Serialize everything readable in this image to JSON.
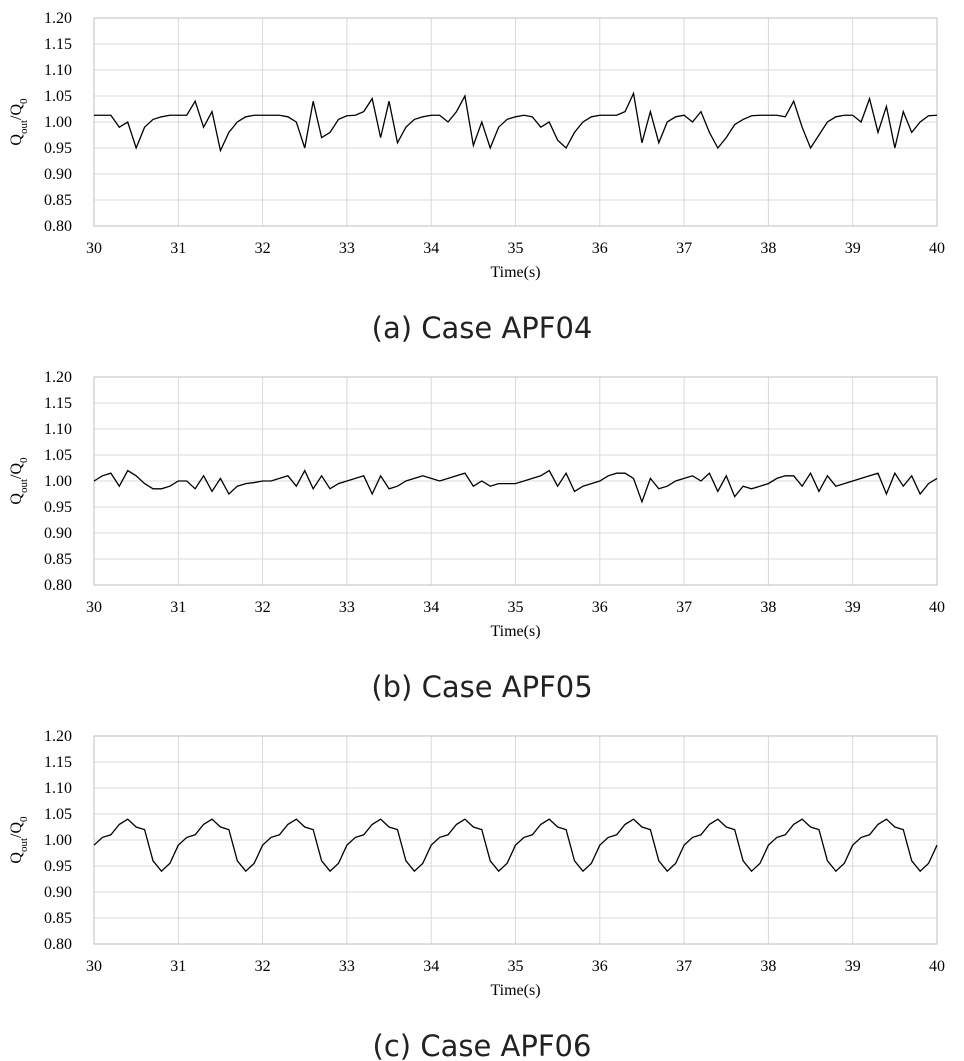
{
  "chart_data": [
    {
      "type": "line",
      "title": "(a) Case APF04",
      "xlabel": "Time(s)",
      "ylabel": [
        "Q",
        "out",
        "/Q",
        "0"
      ],
      "color": "#000000",
      "grid": true,
      "xlim": [
        30,
        40
      ],
      "ylim": [
        0.8,
        1.2
      ],
      "xticks": [
        30,
        31,
        32,
        33,
        34,
        35,
        36,
        37,
        38,
        39,
        40
      ],
      "yticks": [
        {
          "value": 0.8,
          "label": "0.80"
        },
        {
          "value": 0.85,
          "label": "0.85"
        },
        {
          "value": 0.9,
          "label": "0.90"
        },
        {
          "value": 0.95,
          "label": "0.95"
        },
        {
          "value": 1.0,
          "label": "1.00"
        },
        {
          "value": 1.05,
          "label": "1.05"
        },
        {
          "value": 1.1,
          "label": "1.10"
        },
        {
          "value": 1.15,
          "label": "1.15"
        },
        {
          "value": 1.2,
          "label": "1.20"
        }
      ],
      "x": [
        30,
        30.1,
        30.2,
        30.3,
        30.4,
        30.5,
        30.6,
        30.7,
        30.8,
        30.9,
        31,
        31.1,
        31.2,
        31.3,
        31.4,
        31.5,
        31.6,
        31.7,
        31.8,
        31.9,
        32,
        32.1,
        32.2,
        32.3,
        32.4,
        32.5,
        32.6,
        32.7,
        32.8,
        32.9,
        33,
        33.1,
        33.2,
        33.3,
        33.4,
        33.5,
        33.6,
        33.7,
        33.8,
        33.9,
        34,
        34.1,
        34.2,
        34.3,
        34.4,
        34.5,
        34.6,
        34.7,
        34.8,
        34.9,
        35,
        35.1,
        35.2,
        35.3,
        35.4,
        35.5,
        35.6,
        35.7,
        35.8,
        35.9,
        36,
        36.1,
        36.2,
        36.3,
        36.4,
        36.5,
        36.6,
        36.7,
        36.8,
        36.9,
        37,
        37.1,
        37.2,
        37.3,
        37.4,
        37.5,
        37.6,
        37.7,
        37.8,
        37.9,
        38,
        38.1,
        38.2,
        38.3,
        38.4,
        38.5,
        38.6,
        38.7,
        38.8,
        38.9,
        39,
        39.1,
        39.2,
        39.3,
        39.4,
        39.5,
        39.6,
        39.7,
        39.8,
        39.9,
        40
      ],
      "values": [
        1.013,
        1.013,
        1.013,
        0.99,
        1.0,
        0.95,
        0.99,
        1.005,
        1.01,
        1.013,
        1.013,
        1.013,
        1.04,
        0.99,
        1.02,
        0.945,
        0.98,
        1.0,
        1.01,
        1.013,
        1.013,
        1.013,
        1.013,
        1.01,
        1.0,
        0.95,
        1.04,
        0.97,
        0.98,
        1.005,
        1.012,
        1.013,
        1.02,
        1.045,
        0.97,
        1.04,
        0.96,
        0.99,
        1.005,
        1.01,
        1.013,
        1.013,
        1.0,
        1.02,
        1.05,
        0.955,
        1.0,
        0.95,
        0.99,
        1.005,
        1.01,
        1.013,
        1.01,
        0.99,
        1.0,
        0.965,
        0.95,
        0.98,
        1.0,
        1.01,
        1.013,
        1.013,
        1.013,
        1.02,
        1.055,
        0.96,
        1.02,
        0.96,
        1.0,
        1.01,
        1.013,
        1.0,
        1.02,
        0.98,
        0.95,
        0.97,
        0.995,
        1.005,
        1.012,
        1.013,
        1.013,
        1.013,
        1.01,
        1.04,
        0.99,
        0.95,
        0.975,
        1.0,
        1.01,
        1.013,
        1.013,
        1.0,
        1.045,
        0.98,
        1.03,
        0.95,
        1.02,
        0.98,
        1.0,
        1.012,
        1.013
      ]
    },
    {
      "type": "line",
      "title": "(b) Case APF05",
      "xlabel": "Time(s)",
      "ylabel": [
        "Q",
        "out",
        "/Q",
        "0"
      ],
      "color": "#000000",
      "grid": true,
      "xlim": [
        30,
        40
      ],
      "ylim": [
        0.8,
        1.2
      ],
      "xticks": [
        30,
        31,
        32,
        33,
        34,
        35,
        36,
        37,
        38,
        39,
        40
      ],
      "yticks": [
        {
          "value": 0.8,
          "label": "0.80"
        },
        {
          "value": 0.85,
          "label": "0.85"
        },
        {
          "value": 0.9,
          "label": "0.90"
        },
        {
          "value": 0.95,
          "label": "0.95"
        },
        {
          "value": 1.0,
          "label": "1.00"
        },
        {
          "value": 1.05,
          "label": "1.05"
        },
        {
          "value": 1.1,
          "label": "1.10"
        },
        {
          "value": 1.15,
          "label": "1.15"
        },
        {
          "value": 1.2,
          "label": "1.20"
        }
      ],
      "x": [
        30,
        30.1,
        30.2,
        30.3,
        30.4,
        30.5,
        30.6,
        30.7,
        30.8,
        30.9,
        31,
        31.1,
        31.2,
        31.3,
        31.4,
        31.5,
        31.6,
        31.7,
        31.8,
        31.9,
        32,
        32.1,
        32.2,
        32.3,
        32.4,
        32.5,
        32.6,
        32.7,
        32.8,
        32.9,
        33,
        33.1,
        33.2,
        33.3,
        33.4,
        33.5,
        33.6,
        33.7,
        33.8,
        33.9,
        34,
        34.1,
        34.2,
        34.3,
        34.4,
        34.5,
        34.6,
        34.7,
        34.8,
        34.9,
        35,
        35.1,
        35.2,
        35.3,
        35.4,
        35.5,
        35.6,
        35.7,
        35.8,
        35.9,
        36,
        36.1,
        36.2,
        36.3,
        36.4,
        36.5,
        36.6,
        36.7,
        36.8,
        36.9,
        37,
        37.1,
        37.2,
        37.3,
        37.4,
        37.5,
        37.6,
        37.7,
        37.8,
        37.9,
        38,
        38.1,
        38.2,
        38.3,
        38.4,
        38.5,
        38.6,
        38.7,
        38.8,
        38.9,
        39,
        39.1,
        39.2,
        39.3,
        39.4,
        39.5,
        39.6,
        39.7,
        39.8,
        39.9,
        40
      ],
      "values": [
        1.0,
        1.01,
        1.015,
        0.99,
        1.02,
        1.01,
        0.995,
        0.985,
        0.985,
        0.99,
        1.0,
        1.0,
        0.985,
        1.01,
        0.98,
        1.005,
        0.975,
        0.99,
        0.995,
        0.997,
        1.0,
        1.0,
        1.005,
        1.01,
        0.99,
        1.02,
        0.985,
        1.01,
        0.985,
        0.995,
        1.0,
        1.005,
        1.01,
        0.975,
        1.01,
        0.985,
        0.99,
        1.0,
        1.005,
        1.01,
        1.005,
        1.0,
        1.005,
        1.01,
        1.015,
        0.99,
        1.0,
        0.99,
        0.995,
        0.995,
        0.995,
        1.0,
        1.005,
        1.01,
        1.02,
        0.99,
        1.015,
        0.98,
        0.99,
        0.995,
        1.0,
        1.01,
        1.015,
        1.015,
        1.005,
        0.96,
        1.005,
        0.985,
        0.99,
        1.0,
        1.005,
        1.01,
        1.0,
        1.015,
        0.98,
        1.01,
        0.97,
        0.99,
        0.985,
        0.99,
        0.995,
        1.005,
        1.01,
        1.01,
        0.99,
        1.015,
        0.98,
        1.01,
        0.99,
        0.995,
        1.0,
        1.005,
        1.01,
        1.015,
        0.975,
        1.015,
        0.99,
        1.01,
        0.975,
        0.995,
        1.005
      ]
    },
    {
      "type": "line",
      "title": "(c) Case APF06",
      "xlabel": "Time(s)",
      "ylabel": [
        "Q",
        "out",
        "/Q",
        "0"
      ],
      "color": "#000000",
      "grid": true,
      "xlim": [
        30,
        40
      ],
      "ylim": [
        0.8,
        1.2
      ],
      "xticks": [
        30,
        31,
        32,
        33,
        34,
        35,
        36,
        37,
        38,
        39,
        40
      ],
      "yticks": [
        {
          "value": 0.8,
          "label": "0.80"
        },
        {
          "value": 0.85,
          "label": "0.85"
        },
        {
          "value": 0.9,
          "label": "0.90"
        },
        {
          "value": 0.95,
          "label": "0.95"
        },
        {
          "value": 1.0,
          "label": "1.00"
        },
        {
          "value": 1.05,
          "label": "1.05"
        },
        {
          "value": 1.1,
          "label": "1.10"
        },
        {
          "value": 1.15,
          "label": "1.15"
        },
        {
          "value": 1.2,
          "label": "1.20"
        }
      ],
      "x": [
        30,
        30.1,
        30.2,
        30.3,
        30.4,
        30.5,
        30.6,
        30.7,
        30.8,
        30.9,
        31,
        31.1,
        31.2,
        31.3,
        31.4,
        31.5,
        31.6,
        31.7,
        31.8,
        31.9,
        32,
        32.1,
        32.2,
        32.3,
        32.4,
        32.5,
        32.6,
        32.7,
        32.8,
        32.9,
        33,
        33.1,
        33.2,
        33.3,
        33.4,
        33.5,
        33.6,
        33.7,
        33.8,
        33.9,
        34,
        34.1,
        34.2,
        34.3,
        34.4,
        34.5,
        34.6,
        34.7,
        34.8,
        34.9,
        35,
        35.1,
        35.2,
        35.3,
        35.4,
        35.5,
        35.6,
        35.7,
        35.8,
        35.9,
        36,
        36.1,
        36.2,
        36.3,
        36.4,
        36.5,
        36.6,
        36.7,
        36.8,
        36.9,
        37,
        37.1,
        37.2,
        37.3,
        37.4,
        37.5,
        37.6,
        37.7,
        37.8,
        37.9,
        38,
        38.1,
        38.2,
        38.3,
        38.4,
        38.5,
        38.6,
        38.7,
        38.8,
        38.9,
        39,
        39.1,
        39.2,
        39.3,
        39.4,
        39.5,
        39.6,
        39.7,
        39.8,
        39.9,
        40
      ],
      "values": [
        0.99,
        1.005,
        1.01,
        1.03,
        1.04,
        1.025,
        1.02,
        0.96,
        0.94,
        0.955,
        0.99,
        1.005,
        1.01,
        1.03,
        1.04,
        1.025,
        1.02,
        0.96,
        0.94,
        0.955,
        0.99,
        1.005,
        1.01,
        1.03,
        1.04,
        1.025,
        1.02,
        0.96,
        0.94,
        0.955,
        0.99,
        1.005,
        1.01,
        1.03,
        1.04,
        1.025,
        1.02,
        0.96,
        0.94,
        0.955,
        0.99,
        1.005,
        1.01,
        1.03,
        1.04,
        1.025,
        1.02,
        0.96,
        0.94,
        0.955,
        0.99,
        1.005,
        1.01,
        1.03,
        1.04,
        1.025,
        1.02,
        0.96,
        0.94,
        0.955,
        0.99,
        1.005,
        1.01,
        1.03,
        1.04,
        1.025,
        1.02,
        0.96,
        0.94,
        0.955,
        0.99,
        1.005,
        1.01,
        1.03,
        1.04,
        1.025,
        1.02,
        0.96,
        0.94,
        0.955,
        0.99,
        1.005,
        1.01,
        1.03,
        1.04,
        1.025,
        1.02,
        0.96,
        0.94,
        0.955,
        0.99,
        1.005,
        1.01,
        1.03,
        1.04,
        1.025,
        1.02,
        0.96,
        0.94,
        0.955,
        0.99
      ]
    }
  ]
}
